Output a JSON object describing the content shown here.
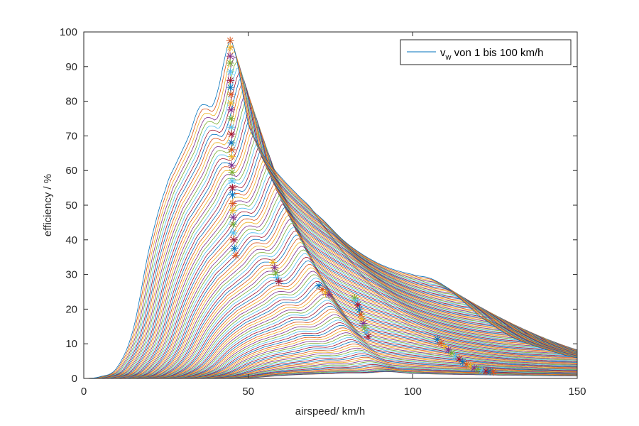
{
  "chart_data": {
    "type": "line",
    "title": "",
    "xlabel": "airspeed/ km/h",
    "ylabel": "efficiency / %",
    "xlim": [
      0,
      150
    ],
    "ylim": [
      0,
      100
    ],
    "xticks": [
      0,
      50,
      100,
      150
    ],
    "yticks": [
      0,
      10,
      20,
      30,
      40,
      50,
      60,
      70,
      80,
      90,
      100
    ],
    "grid": false,
    "legend": {
      "position": "northeast",
      "entries": [
        {
          "text_main": "v",
          "text_sub": "w",
          "text_rest": " von 1 bis 100 km/h",
          "color": "#0072BD"
        }
      ]
    },
    "series_count": 100,
    "series_description": "Family of 100 efficiency curves for wind speed v_w from 1 to 100 km/h; outermost (top) curve listed below, inner curves progressively lower and shifted right.",
    "top_curve": {
      "x": [
        0,
        5,
        10,
        15,
        20,
        25,
        28,
        32,
        35,
        37,
        39,
        41,
        43,
        44.5,
        46,
        48,
        50,
        55,
        60,
        65,
        70,
        80,
        90,
        100,
        105,
        110,
        115,
        120,
        130,
        140,
        150
      ],
      "y": [
        0,
        0.5,
        3,
        14,
        38,
        55,
        62,
        70,
        78,
        79,
        78.5,
        84,
        93,
        97.5,
        94,
        84,
        73,
        64,
        58,
        53,
        48,
        39,
        33,
        30,
        29,
        26.5,
        22.5,
        18,
        12,
        8.5,
        6
      ]
    },
    "markers": {
      "description": "Maximum-efficiency points (asterisks) per curve",
      "points": [
        [
          44.5,
          97.5
        ],
        [
          44.5,
          95.5
        ],
        [
          44.5,
          93
        ],
        [
          44.5,
          91
        ],
        [
          44.6,
          88.5
        ],
        [
          44.6,
          86
        ],
        [
          44.6,
          84
        ],
        [
          44.7,
          82
        ],
        [
          44.7,
          79.5
        ],
        [
          44.8,
          77.5
        ],
        [
          44.8,
          75
        ],
        [
          44.8,
          72.5
        ],
        [
          44.9,
          70.5
        ],
        [
          44.9,
          68
        ],
        [
          45.0,
          66
        ],
        [
          45.0,
          64
        ],
        [
          45.0,
          61.5
        ],
        [
          45.1,
          59.5
        ],
        [
          45.1,
          57
        ],
        [
          45.2,
          55
        ],
        [
          45.2,
          53
        ],
        [
          45.3,
          50.5
        ],
        [
          45.3,
          48.5
        ],
        [
          45.4,
          46.5
        ],
        [
          45.4,
          44.5
        ],
        [
          45.5,
          42
        ],
        [
          45.6,
          40
        ],
        [
          45.8,
          37.5
        ],
        [
          46.2,
          35.5
        ],
        [
          57.5,
          33.5
        ],
        [
          58,
          32
        ],
        [
          58.4,
          30.5
        ],
        [
          58.8,
          29
        ],
        [
          59.3,
          28
        ],
        [
          71.5,
          26.7
        ],
        [
          72.5,
          25.7
        ],
        [
          73.5,
          24.6
        ],
        [
          74.5,
          24.2
        ],
        [
          82.3,
          23.2
        ],
        [
          82.8,
          22.4
        ],
        [
          83.3,
          21.2
        ],
        [
          83.8,
          19.8
        ],
        [
          84.2,
          18.5
        ],
        [
          84.6,
          17.2
        ],
        [
          85.0,
          15.9
        ],
        [
          85.4,
          14.6
        ],
        [
          85.9,
          13.3
        ],
        [
          86.4,
          12.1
        ],
        [
          107.5,
          11.3
        ],
        [
          108.6,
          10.2
        ],
        [
          109.7,
          9.2
        ],
        [
          110.8,
          8.2
        ],
        [
          111.9,
          7.3
        ],
        [
          113,
          6.4
        ],
        [
          114.1,
          5.6
        ],
        [
          115.2,
          4.8
        ],
        [
          116.3,
          4.1
        ],
        [
          117.5,
          3.5
        ],
        [
          118.7,
          3.0
        ],
        [
          119.9,
          2.6
        ],
        [
          121.1,
          2.3
        ],
        [
          122.3,
          2.1
        ],
        [
          123.5,
          2.0
        ],
        [
          124.5,
          1.9
        ]
      ]
    },
    "colors": [
      "#0072BD",
      "#D95319",
      "#EDB120",
      "#7E2F8E",
      "#77AC30",
      "#4DBEEE",
      "#A2142F"
    ]
  }
}
